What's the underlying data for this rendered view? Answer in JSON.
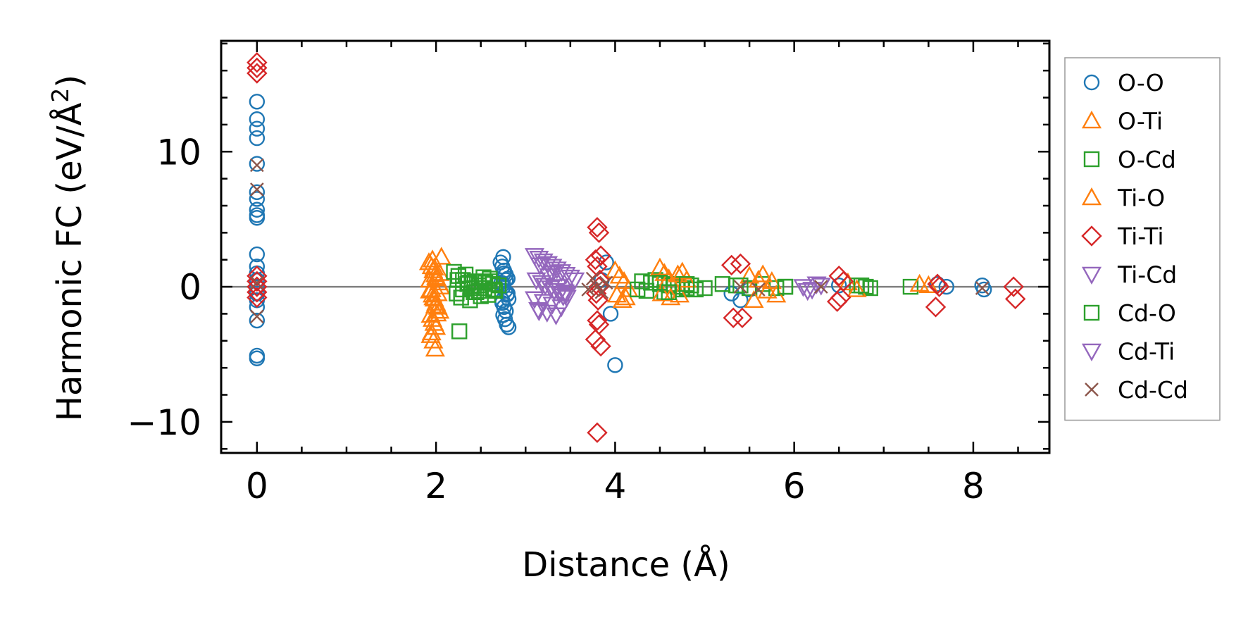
{
  "chart_data": {
    "type": "scatter",
    "xlabel": "Distance (Å)",
    "ylabel_prefix": "Harmonic FC (eV/Å",
    "ylabel_sup": "2",
    "ylabel_suffix": ")",
    "xlim": [
      -0.4,
      8.85
    ],
    "ylim": [
      -12.3,
      18.2
    ],
    "x_ticks": [
      0,
      2,
      4,
      6,
      8
    ],
    "x_tick_labels": [
      "0",
      "2",
      "4",
      "6",
      "8"
    ],
    "y_ticks": [
      -10,
      0,
      10
    ],
    "y_tick_labels": [
      "−10",
      "0",
      "10"
    ],
    "reference_line_y": 0,
    "legend_position": "outside-right",
    "series": [
      {
        "name": "O-O",
        "marker": "circle",
        "color": "#1f77b4",
        "x": [
          0,
          0,
          0,
          0,
          0,
          0,
          0,
          0,
          0,
          0,
          0,
          0,
          0,
          0,
          0,
          0,
          0,
          0,
          0,
          0,
          0,
          2.75,
          2.72,
          2.74,
          2.76,
          2.78,
          2.8,
          2.73,
          2.75,
          2.77,
          2.79,
          2.81,
          2.74,
          2.76,
          2.78,
          2.75,
          2.77,
          2.79,
          2.81,
          2.76,
          2.78,
          2.8,
          2.74,
          2.75,
          3.9,
          3.95,
          3.85,
          4.0,
          5.3,
          5.4,
          5.5,
          6.5,
          7.6,
          7.7,
          8.1,
          8.12
        ],
        "y": [
          13.7,
          12.4,
          11.7,
          11.0,
          9.1,
          7.0,
          6.5,
          5.7,
          5.3,
          5.1,
          2.4,
          1.5,
          1.0,
          0.5,
          0,
          -0.5,
          -1,
          -1.5,
          -2.5,
          -5.1,
          -5.3,
          2.2,
          1.8,
          1.5,
          1.2,
          0.9,
          0.6,
          0.3,
          0,
          -0.3,
          -0.6,
          -0.9,
          -1.2,
          -1.5,
          -1.8,
          -2.1,
          -2.4,
          -2.8,
          -3.0,
          1.0,
          0.5,
          -0.5,
          -1.0,
          0.2,
          1.8,
          -2.0,
          0.5,
          -5.8,
          -0.5,
          -1.0,
          -0.2,
          0.1,
          0.2,
          0,
          0.1,
          -0.2
        ]
      },
      {
        "name": "O-Ti",
        "marker": "triangle-up",
        "color": "#ff7f0e",
        "x": [
          1.92,
          1.95,
          1.97,
          1.99,
          2.01,
          2.03,
          2.05,
          1.93,
          1.96,
          1.98,
          2.0,
          2.02,
          2.04,
          1.94,
          1.96,
          1.98,
          2.0,
          1.95,
          1.97,
          1.99,
          2.06,
          2.04,
          1.93,
          1.95,
          1.97,
          1.99,
          2.01,
          1.96,
          1.98,
          2.0,
          2.02,
          1.94
        ],
        "y": [
          1.8,
          1.5,
          1.2,
          0.9,
          0.6,
          0.3,
          0,
          -0.3,
          -0.6,
          -0.9,
          -1.2,
          -1.5,
          -1.8,
          -2.1,
          -2.4,
          -2.7,
          -3.0,
          -3.4,
          -4.0,
          -4.6,
          2.2,
          1.0,
          0.5,
          -0.2,
          -0.8,
          -1.4,
          -2.0,
          2.0,
          1.4,
          0.7,
          -0.5,
          -3.6
        ]
      },
      {
        "name": "O-Cd",
        "marker": "square",
        "color": "#2ca02c",
        "x": [
          2.2,
          2.25,
          2.3,
          2.35,
          2.4,
          2.45,
          2.5,
          2.55,
          2.6,
          2.65,
          2.7,
          2.23,
          2.28,
          2.33,
          2.38,
          2.43,
          2.48,
          2.53,
          2.58,
          2.63,
          2.26,
          2.24,
          2.3,
          2.36,
          2.42,
          2.48,
          2.54,
          2.6,
          2.66,
          4.3,
          4.4,
          4.5,
          4.6,
          4.7,
          4.8,
          4.9,
          4.35,
          4.45,
          4.55,
          4.65,
          4.75,
          4.85,
          5.2,
          5.35,
          5.5,
          5.65,
          5.8,
          5.9,
          6.7,
          6.8,
          6.85,
          7.3
        ],
        "y": [
          1.1,
          0.8,
          0.5,
          0.2,
          -0.1,
          -0.4,
          -0.7,
          0.3,
          0.6,
          -0.2,
          0.1,
          -0.5,
          -0.8,
          0.9,
          -1.0,
          0.4,
          -0.3,
          0.7,
          -0.6,
          0.2,
          -3.3,
          0.5,
          -0.2,
          0.3,
          -0.4,
          0.1,
          -0.1,
          0.4,
          -0.3,
          0.4,
          0.3,
          0.2,
          0.1,
          0,
          -0.1,
          -0.2,
          -0.3,
          0.5,
          -0.4,
          0.2,
          -0.2,
          0.1,
          0.2,
          0.1,
          -0.1,
          0.2,
          -0.1,
          0,
          0.1,
          0,
          -0.1,
          0
        ]
      },
      {
        "name": "Ti-O",
        "marker": "triangle-up",
        "color": "#ff7f0e",
        "x": [
          4.0,
          4.05,
          4.1,
          4.15,
          4.02,
          4.08,
          4.12,
          4.5,
          4.55,
          4.6,
          4.7,
          4.75,
          4.8,
          4.52,
          4.62,
          4.72,
          5.5,
          5.6,
          5.7,
          5.8,
          5.55,
          5.65,
          5.75,
          6.6,
          6.7,
          7.4,
          7.5
        ],
        "y": [
          1.2,
          0.8,
          0.4,
          -0.2,
          -0.6,
          -1.0,
          -0.8,
          1.4,
          1.0,
          0.6,
          0.9,
          1.1,
          0.5,
          -0.5,
          -0.8,
          -0.6,
          0.8,
          0.5,
          -0.3,
          -0.6,
          -1.0,
          0.9,
          0.4,
          0.3,
          -0.2,
          0.2,
          0.1
        ]
      },
      {
        "name": "Ti-Ti",
        "marker": "diamond",
        "color": "#d62728",
        "x": [
          0,
          0,
          0,
          0,
          0,
          0,
          0,
          0,
          3.8,
          3.82,
          3.84,
          3.78,
          3.8,
          3.83,
          3.79,
          3.81,
          3.8,
          3.82,
          3.78,
          3.84,
          3.8,
          3.82,
          5.3,
          5.4,
          5.32,
          5.42,
          6.5,
          6.55,
          6.52,
          6.48,
          7.6,
          7.62,
          7.58,
          8.45,
          8.47
        ],
        "y": [
          16.6,
          16.2,
          15.8,
          0.8,
          0.4,
          0,
          -0.4,
          -0.8,
          4.4,
          4.0,
          2.3,
          2.0,
          1.5,
          0.5,
          -0.5,
          -1.0,
          -2.5,
          -2.8,
          -3.9,
          -4.4,
          -10.8,
          0,
          1.6,
          1.7,
          -2.3,
          -2.3,
          0.8,
          0.4,
          -0.8,
          -1.1,
          0.2,
          0,
          -1.5,
          0,
          -0.9
        ]
      },
      {
        "name": "Ti-Cd",
        "marker": "triangle-down",
        "color": "#9467bd",
        "x": [
          3.1,
          3.15,
          3.2,
          3.25,
          3.3,
          3.35,
          3.4,
          3.45,
          3.5,
          3.12,
          3.18,
          3.22,
          3.28,
          3.32,
          3.38,
          3.42,
          3.1,
          3.2,
          3.3,
          3.4,
          3.14,
          3.24,
          3.34,
          3.44,
          3.16,
          3.26,
          3.36,
          3.46,
          6.1,
          6.2,
          6.3
        ],
        "y": [
          2.3,
          2.1,
          1.9,
          1.7,
          1.5,
          1.3,
          1.1,
          0.9,
          0.7,
          0.5,
          0.3,
          0.1,
          -0.1,
          -0.3,
          -0.5,
          -0.7,
          -0.9,
          -1.1,
          -1.3,
          -1.5,
          -1.7,
          -1.9,
          -2.1,
          -0.4,
          1.6,
          0.8,
          0,
          -0.8,
          0,
          -0.2,
          0.1
        ]
      },
      {
        "name": "Cd-O",
        "marker": "square",
        "color": "#2ca02c",
        "x": [
          4.25,
          4.5,
          4.6,
          4.8,
          5.0,
          5.4,
          5.9,
          6.75
        ],
        "y": [
          -0.2,
          0.3,
          -0.4,
          0.2,
          -0.1,
          0.1,
          0,
          0.1
        ]
      },
      {
        "name": "Cd-Ti",
        "marker": "triangle-down",
        "color": "#9467bd",
        "x": [
          3.15,
          3.3,
          3.45,
          3.55,
          6.15,
          6.25
        ],
        "y": [
          -1.8,
          1.0,
          -0.6,
          0.5,
          -0.3,
          0.2
        ]
      },
      {
        "name": "Cd-Cd",
        "marker": "x",
        "color": "#8c564b",
        "x": [
          0,
          0,
          0,
          0,
          3.7,
          3.75,
          3.8,
          3.85,
          3.9,
          5.4,
          5.6,
          6.3,
          8.1
        ],
        "y": [
          9.0,
          7.2,
          0.3,
          -2.2,
          -0.2,
          0.6,
          0,
          -0.4,
          0.3,
          0,
          -0.2,
          0,
          -0.1
        ]
      }
    ]
  }
}
